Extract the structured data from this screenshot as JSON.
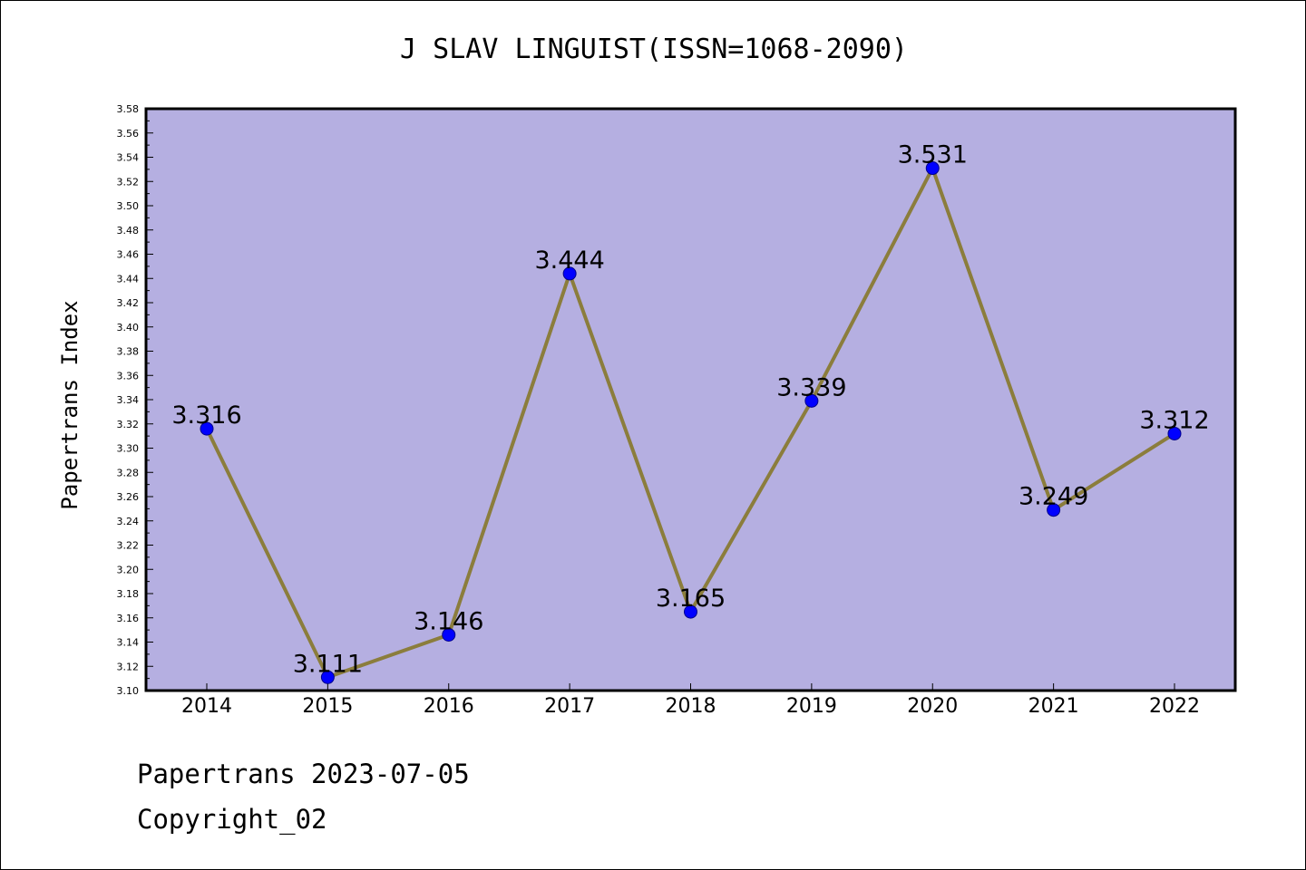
{
  "title": "J SLAV LINGUIST(ISSN=1068-2090)",
  "footer": {
    "date_line": "Papertrans 2023-07-05",
    "copyright_line": "Copyright_02"
  },
  "colors": {
    "plot_background": "#b5afe1",
    "line": "#8b7d3c",
    "marker": "#0000ff",
    "marker_edge": "#00008b"
  },
  "chart_data": {
    "type": "line",
    "title": "J SLAV LINGUIST(ISSN=1068-2090)",
    "xlabel": "",
    "ylabel": "Papertrans Index",
    "categories": [
      "2014",
      "2015",
      "2016",
      "2017",
      "2018",
      "2019",
      "2020",
      "2021",
      "2022"
    ],
    "values": [
      3.316,
      3.111,
      3.146,
      3.444,
      3.165,
      3.339,
      3.531,
      3.249,
      3.312
    ],
    "data_labels": [
      "3.316",
      "3.111",
      "3.146",
      "3.444",
      "3.165",
      "3.339",
      "3.531",
      "3.249",
      "3.312"
    ],
    "ylim": [
      3.1,
      3.58
    ],
    "y_ticks": [
      "3.10",
      "3.12",
      "3.14",
      "3.16",
      "3.18",
      "3.20",
      "3.22",
      "3.24",
      "3.26",
      "3.28",
      "3.30",
      "3.32",
      "3.34",
      "3.36",
      "3.38",
      "3.40",
      "3.42",
      "3.44",
      "3.46",
      "3.48",
      "3.50",
      "3.52",
      "3.54",
      "3.56",
      "3.58"
    ],
    "grid": false,
    "legend": "none"
  }
}
